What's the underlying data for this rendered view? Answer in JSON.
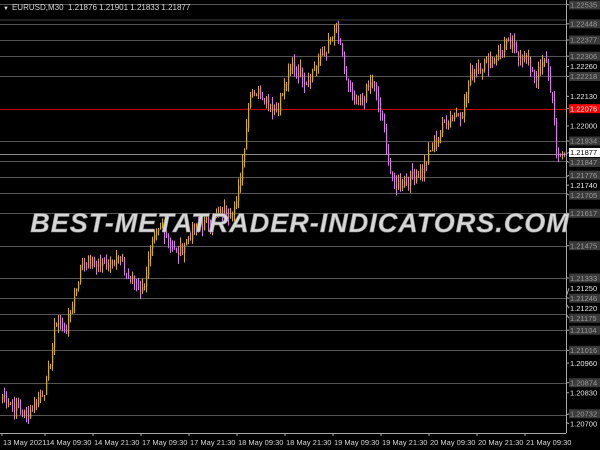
{
  "header": {
    "symbol": "EURUSD,M30",
    "ohlc": "1.21876 1.21901 1.21833 1.21877"
  },
  "watermark": "BEST-METATRADER-INDICATORS.COM",
  "colors": {
    "bull": "#d4b000",
    "bear": "#d27ee0",
    "grid": "#555555",
    "red_line": "#cc0000",
    "bid_label_bg": "#ffffff",
    "level_label_bg": "#3a3a3a"
  },
  "chart_data": {
    "type": "candlestick",
    "symbol": "EURUSD",
    "timeframe": "M30",
    "ylim": [
      1.2066,
      1.2256
    ],
    "grid": false,
    "price_ticks": [
      "1.22260",
      "1.22130",
      "1.22000",
      "1.21740",
      "1.21250",
      "1.21220",
      "1.20960",
      "1.20830",
      "1.20700"
    ],
    "level_lines": [
      "1.22535",
      "1.22448",
      "1.22377",
      "1.22306",
      "1.22218",
      "1.21934",
      "1.21847",
      "1.21776",
      "1.21705",
      "1.21617",
      "1.21475",
      "1.21333",
      "1.21246",
      "1.21175",
      "1.21104",
      "1.21016",
      "1.20874",
      "1.20732"
    ],
    "red_level": "1.22076",
    "current_price": "1.21877",
    "time_labels": [
      "13 May 2021",
      "14 May 09:30",
      "14 May 21:30",
      "17 May 09:30",
      "17 May 21:30",
      "18 May 09:30",
      "18 May 21:30",
      "19 May 09:30",
      "19 May 21:30",
      "20 May 09:30",
      "20 May 21:30",
      "21 May 09:30"
    ],
    "approx_close_by_bar": [
      [
        0,
        1.2082
      ],
      [
        12,
        1.2073
      ],
      [
        22,
        1.2086
      ],
      [
        27,
        1.2115
      ],
      [
        32,
        1.2111
      ],
      [
        40,
        1.2141
      ],
      [
        50,
        1.2139
      ],
      [
        57,
        1.2143
      ],
      [
        62,
        1.2135
      ],
      [
        70,
        1.2128
      ],
      [
        75,
        1.2148
      ],
      [
        80,
        1.2157
      ],
      [
        87,
        1.2143
      ],
      [
        95,
        1.2154
      ],
      [
        105,
        1.2159
      ],
      [
        117,
        1.2165
      ],
      [
        120,
        1.2185
      ],
      [
        124,
        1.2216
      ],
      [
        130,
        1.2214
      ],
      [
        137,
        1.2207
      ],
      [
        145,
        1.2227
      ],
      [
        152,
        1.222
      ],
      [
        160,
        1.2231
      ],
      [
        167,
        1.2242
      ],
      [
        172,
        1.222
      ],
      [
        177,
        1.2207
      ],
      [
        185,
        1.222
      ],
      [
        190,
        1.2203
      ],
      [
        195,
        1.2174
      ],
      [
        202,
        1.2176
      ],
      [
        210,
        1.2181
      ],
      [
        217,
        1.2194
      ],
      [
        222,
        1.2203
      ],
      [
        230,
        1.2207
      ],
      [
        235,
        1.2225
      ],
      [
        245,
        1.2229
      ],
      [
        252,
        1.2236
      ],
      [
        260,
        1.2231
      ],
      [
        267,
        1.2222
      ],
      [
        272,
        1.2229
      ],
      [
        275,
        1.2211
      ],
      [
        277,
        1.2189
      ],
      [
        281,
        1.21877
      ]
    ]
  }
}
